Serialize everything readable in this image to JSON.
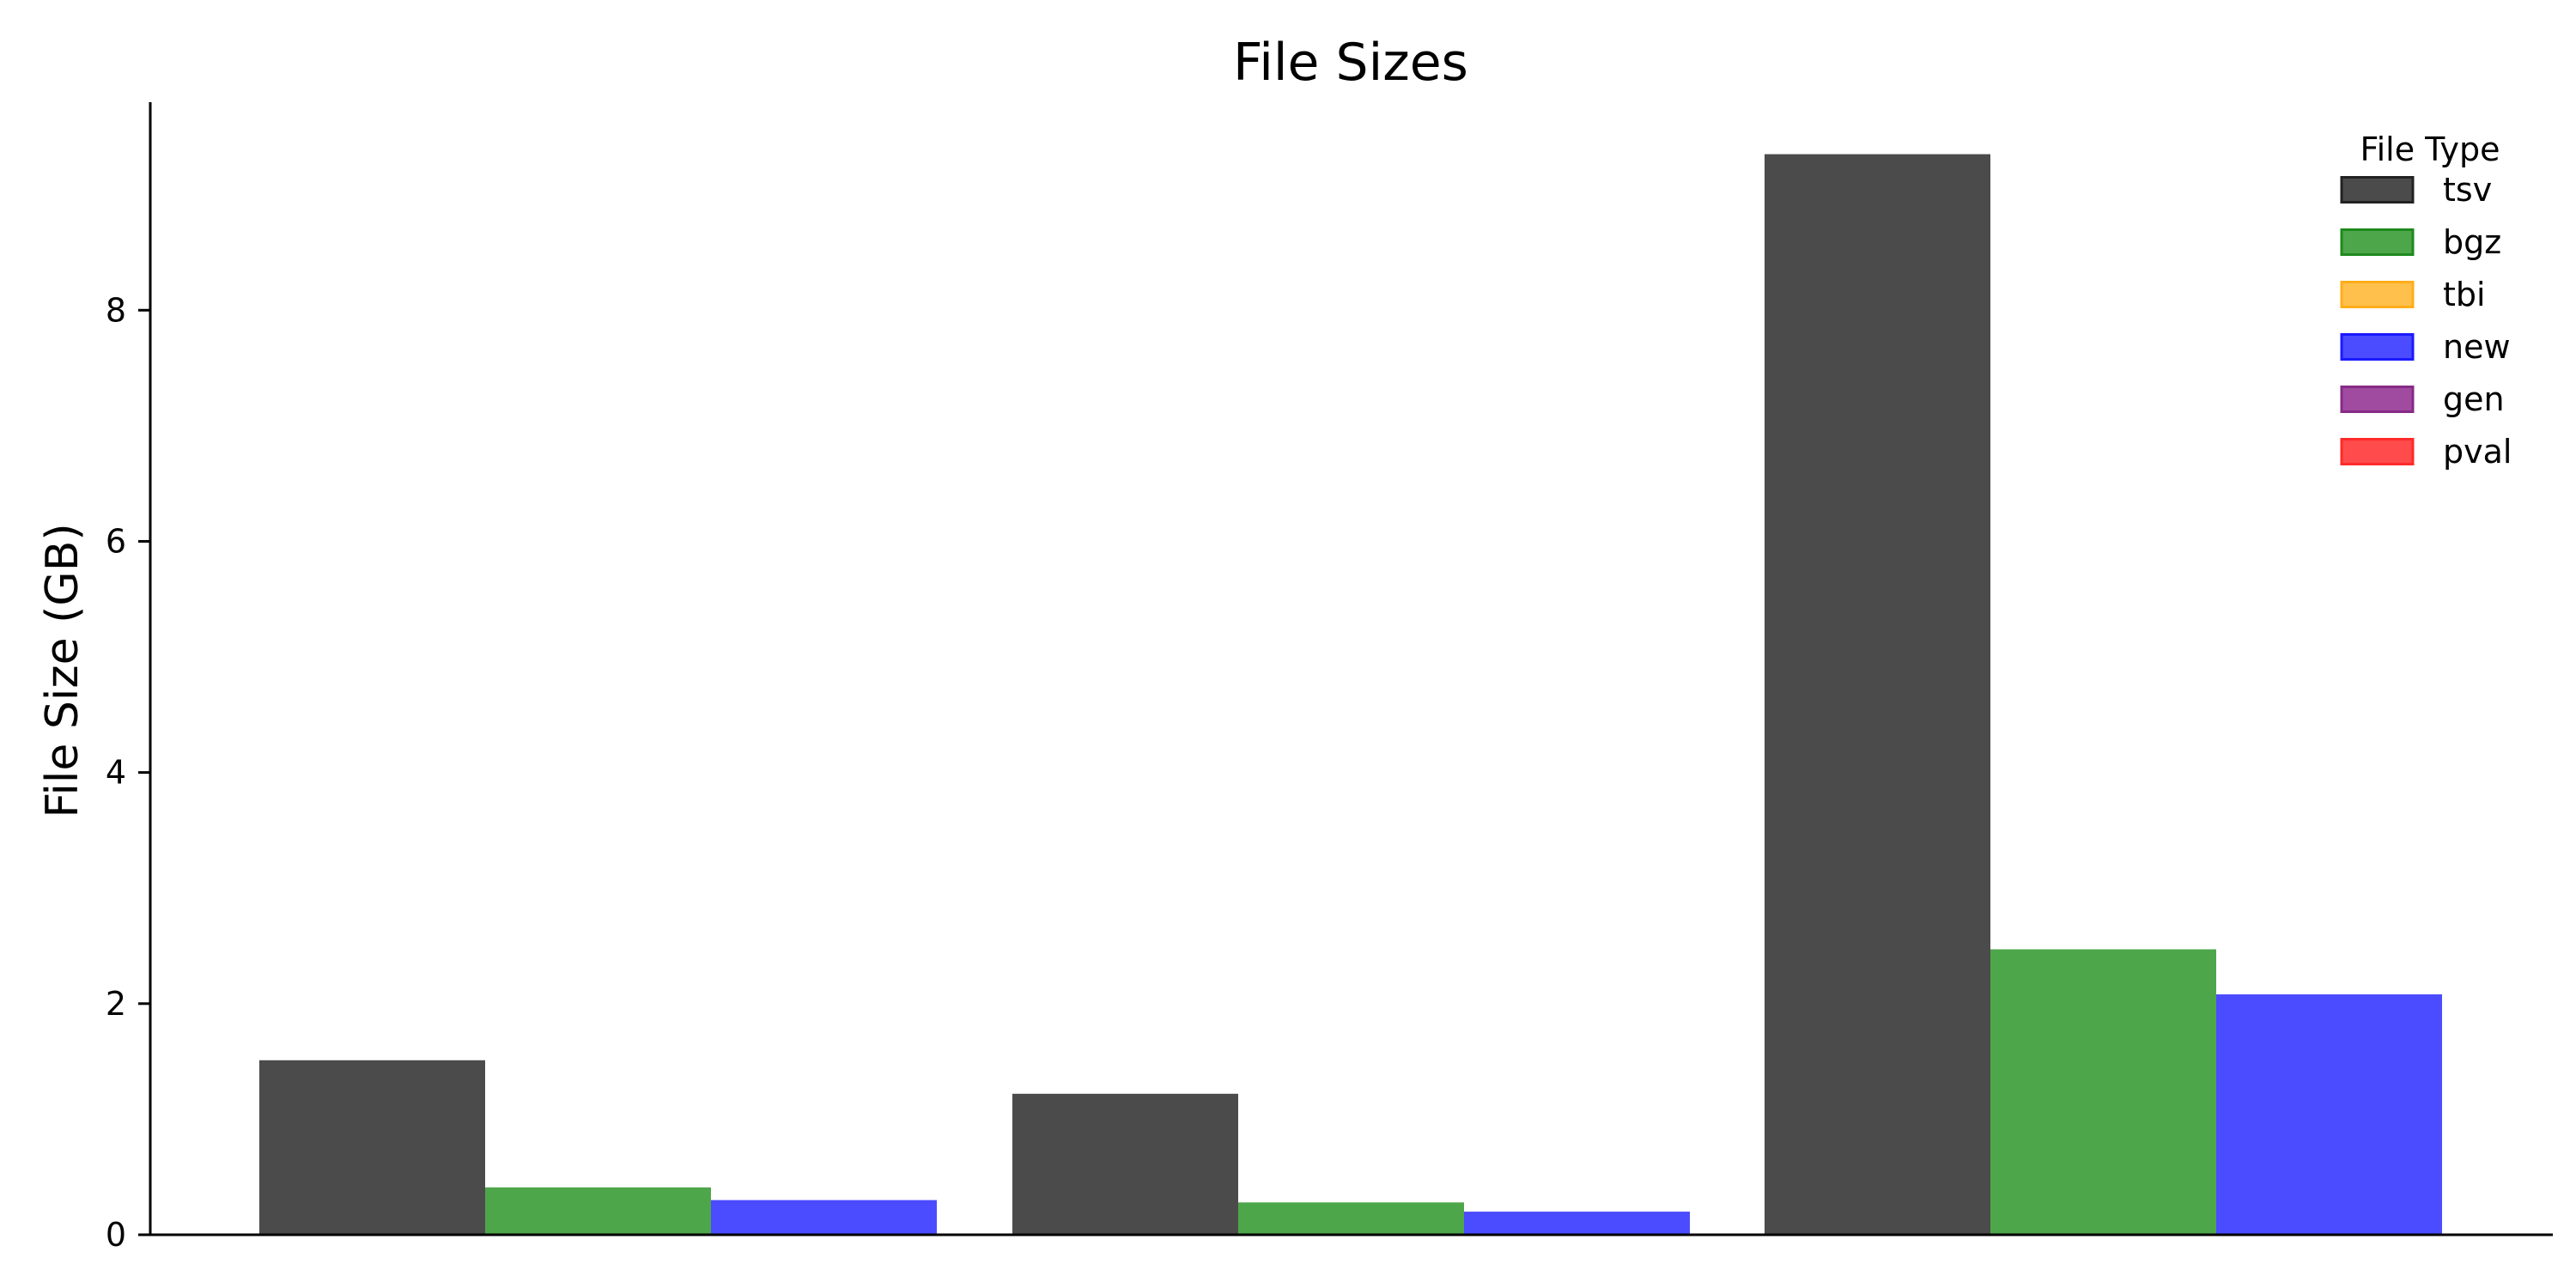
{
  "chart_data": {
    "type": "bar",
    "title": "File Sizes",
    "xlabel": "",
    "ylabel": "File Size (GB)",
    "ylim": [
      0,
      9.8
    ],
    "yticks": [
      0,
      2,
      4,
      6,
      8
    ],
    "categories": [
      "",
      "",
      ""
    ],
    "series": [
      {
        "name": "tsv",
        "color": "#4b4b4b",
        "values": [
          1.51,
          1.22,
          9.35
        ]
      },
      {
        "name": "bgz",
        "color": "#4ea64a",
        "values": [
          0.41,
          0.28,
          2.47
        ]
      },
      {
        "name": "new",
        "color": "#4b4bff",
        "values": [
          0.3,
          0.2,
          2.08
        ]
      }
    ],
    "legend": {
      "title": "File Type",
      "placement": "top-right",
      "entries": [
        {
          "label": "tsv",
          "fill": "#4b4b4b",
          "stroke": "#222222"
        },
        {
          "label": "bgz",
          "fill": "#4ea64a",
          "stroke": "#1e8a1e"
        },
        {
          "label": "tbi",
          "fill": "#ffc04c",
          "stroke": "#ffad1a"
        },
        {
          "label": "new",
          "fill": "#4b4bff",
          "stroke": "#1a1aff"
        },
        {
          "label": "gen",
          "fill": "#a04ba0",
          "stroke": "#862b86"
        },
        {
          "label": "pval",
          "fill": "#ff4b4b",
          "stroke": "#ff2a2a"
        }
      ]
    },
    "grid": false
  }
}
